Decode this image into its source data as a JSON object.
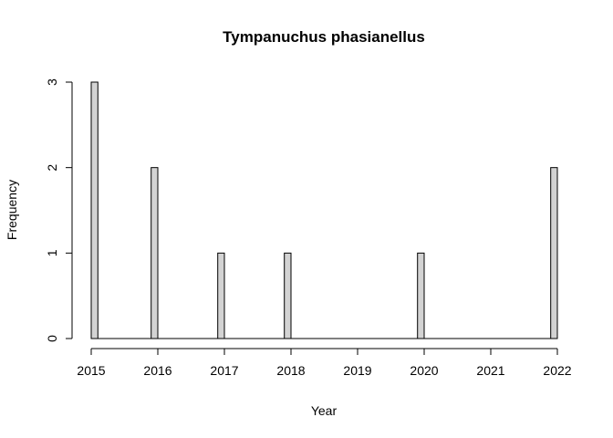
{
  "chart_data": {
    "type": "bar",
    "title": "Tympanuchus phasianellus",
    "xlabel": "Year",
    "ylabel": "Frequency",
    "x_ticks": [
      "2015",
      "2016",
      "2017",
      "2018",
      "2019",
      "2020",
      "2021",
      "2022"
    ],
    "y_ticks": [
      "0",
      "1",
      "2",
      "3"
    ],
    "xlim": [
      2015,
      2022
    ],
    "ylim": [
      0,
      3
    ],
    "bar_width_years": 0.1,
    "bar_color": "#d3d3d3",
    "bar_outline_color": "#000000",
    "bins": [
      {
        "start": 2015.0,
        "value": 3
      },
      {
        "start": 2015.9,
        "value": 2
      },
      {
        "start": 2016.9,
        "value": 1
      },
      {
        "start": 2017.9,
        "value": 1
      },
      {
        "start": 2019.9,
        "value": 1
      },
      {
        "start": 2021.9,
        "value": 2
      }
    ]
  }
}
